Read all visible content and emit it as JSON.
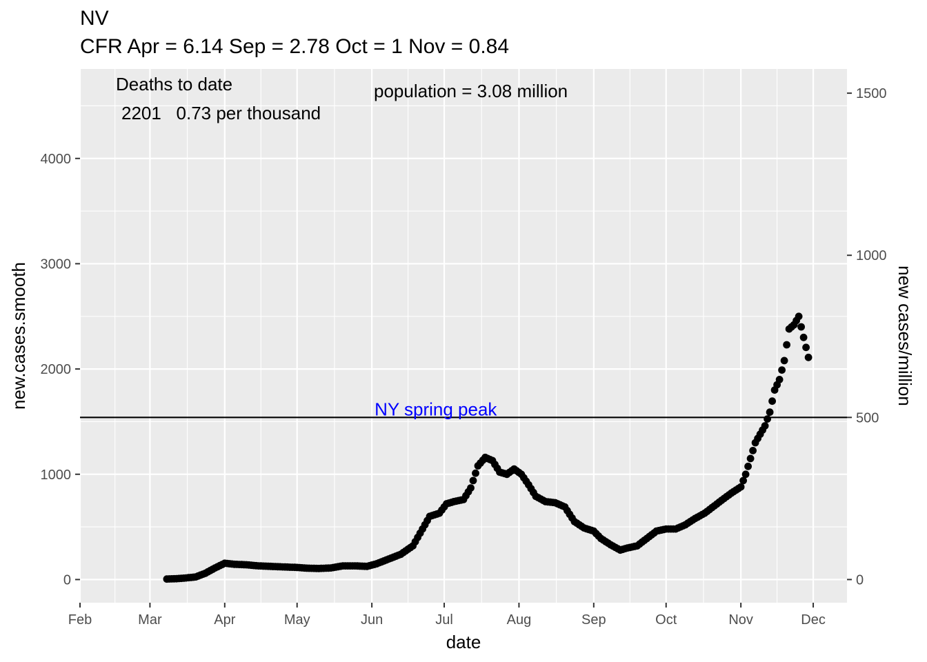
{
  "chart_data": {
    "type": "scatter",
    "title": "NV",
    "subtitle": "CFR Apr = 6.14  Sep = 2.78  Oct = 1  Nov = 0.84",
    "xlabel": "date",
    "ylabel": "new.cases.smooth",
    "y2label": "new cases/million",
    "xlim": [
      "2020-02-01",
      "2020-12-15"
    ],
    "ylim": [
      -220,
      4850
    ],
    "y2_scale_per_unit": 3.08,
    "x_ticks": [
      {
        "label": "Feb",
        "date": "2020-02-01"
      },
      {
        "label": "Mar",
        "date": "2020-03-01"
      },
      {
        "label": "Apr",
        "date": "2020-04-01"
      },
      {
        "label": "May",
        "date": "2020-05-01"
      },
      {
        "label": "Jun",
        "date": "2020-06-01"
      },
      {
        "label": "Jul",
        "date": "2020-07-01"
      },
      {
        "label": "Aug",
        "date": "2020-08-01"
      },
      {
        "label": "Sep",
        "date": "2020-09-01"
      },
      {
        "label": "Oct",
        "date": "2020-10-01"
      },
      {
        "label": "Nov",
        "date": "2020-11-01"
      },
      {
        "label": "Dec",
        "date": "2020-12-01"
      }
    ],
    "y_ticks": [
      0,
      1000,
      2000,
      3000,
      4000
    ],
    "y2_ticks": [
      0,
      500,
      1000,
      1500
    ],
    "reference_line": {
      "y": 1540,
      "label": "NY spring peak",
      "label_color": "#0000ff"
    },
    "annotations": {
      "deaths_heading": "Deaths to date",
      "deaths_value": "2201   0.73 per thousand",
      "population": "population = 3.08 million"
    },
    "grid": true,
    "series": [
      {
        "points": [
          [
            "2020-03-08",
            5
          ],
          [
            "2020-03-12",
            8
          ],
          [
            "2020-03-16",
            15
          ],
          [
            "2020-03-20",
            25
          ],
          [
            "2020-03-24",
            60
          ],
          [
            "2020-03-28",
            110
          ],
          [
            "2020-04-01",
            155
          ],
          [
            "2020-04-05",
            145
          ],
          [
            "2020-04-10",
            140
          ],
          [
            "2020-04-15",
            130
          ],
          [
            "2020-04-20",
            125
          ],
          [
            "2020-04-25",
            120
          ],
          [
            "2020-05-01",
            115
          ],
          [
            "2020-05-05",
            108
          ],
          [
            "2020-05-10",
            105
          ],
          [
            "2020-05-15",
            110
          ],
          [
            "2020-05-20",
            130
          ],
          [
            "2020-05-25",
            130
          ],
          [
            "2020-05-30",
            125
          ],
          [
            "2020-06-03",
            150
          ],
          [
            "2020-06-08",
            195
          ],
          [
            "2020-06-13",
            240
          ],
          [
            "2020-06-18",
            320
          ],
          [
            "2020-06-22",
            480
          ],
          [
            "2020-06-25",
            600
          ],
          [
            "2020-06-29",
            630
          ],
          [
            "2020-07-02",
            720
          ],
          [
            "2020-07-05",
            740
          ],
          [
            "2020-07-09",
            760
          ],
          [
            "2020-07-12",
            870
          ],
          [
            "2020-07-15",
            1080
          ],
          [
            "2020-07-18",
            1160
          ],
          [
            "2020-07-21",
            1130
          ],
          [
            "2020-07-24",
            1020
          ],
          [
            "2020-07-27",
            1000
          ],
          [
            "2020-07-30",
            1050
          ],
          [
            "2020-08-02",
            1000
          ],
          [
            "2020-08-05",
            900
          ],
          [
            "2020-08-08",
            790
          ],
          [
            "2020-08-12",
            740
          ],
          [
            "2020-08-16",
            730
          ],
          [
            "2020-08-20",
            690
          ],
          [
            "2020-08-24",
            550
          ],
          [
            "2020-08-28",
            490
          ],
          [
            "2020-09-01",
            460
          ],
          [
            "2020-09-04",
            390
          ],
          [
            "2020-09-08",
            330
          ],
          [
            "2020-09-12",
            280
          ],
          [
            "2020-09-15",
            300
          ],
          [
            "2020-09-19",
            320
          ],
          [
            "2020-09-23",
            390
          ],
          [
            "2020-09-27",
            460
          ],
          [
            "2020-10-01",
            480
          ],
          [
            "2020-10-05",
            480
          ],
          [
            "2020-10-09",
            520
          ],
          [
            "2020-10-13",
            580
          ],
          [
            "2020-10-17",
            630
          ],
          [
            "2020-10-21",
            700
          ],
          [
            "2020-10-25",
            770
          ],
          [
            "2020-10-28",
            820
          ],
          [
            "2020-11-01",
            880
          ],
          [
            "2020-11-03",
            1000
          ],
          [
            "2020-11-05",
            1150
          ],
          [
            "2020-11-07",
            1300
          ],
          [
            "2020-11-09",
            1380
          ],
          [
            "2020-11-11",
            1460
          ],
          [
            "2020-11-13",
            1590
          ],
          [
            "2020-11-15",
            1800
          ],
          [
            "2020-11-17",
            1900
          ],
          [
            "2020-11-19",
            2080
          ],
          [
            "2020-11-21",
            2380
          ],
          [
            "2020-11-23",
            2420
          ],
          [
            "2020-11-25",
            2500
          ],
          [
            "2020-11-27",
            2300
          ],
          [
            "2020-11-29",
            2110
          ]
        ]
      }
    ]
  }
}
